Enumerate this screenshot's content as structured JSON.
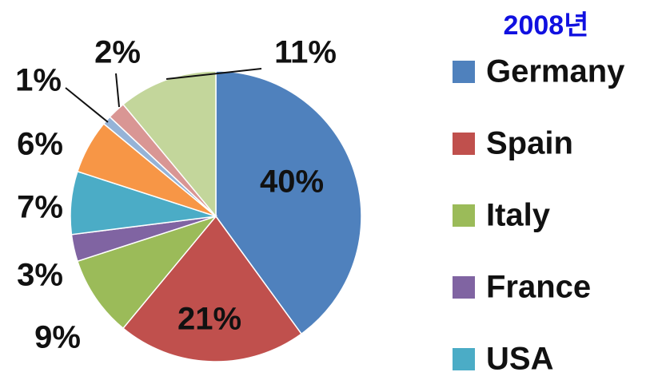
{
  "chart_data": {
    "type": "pie",
    "title": "2008년",
    "categories": [
      "Germany",
      "Spain",
      "Italy",
      "France",
      "USA",
      null,
      null,
      null,
      null
    ],
    "values": [
      40,
      21,
      9,
      3,
      7,
      6,
      1,
      2,
      11
    ],
    "value_labels": [
      "40%",
      "21%",
      "9%",
      "3%",
      "7%",
      "6%",
      "1%",
      "2%",
      "11%"
    ],
    "colors": [
      "#4f81bd",
      "#c0504d",
      "#9bbb59",
      "#8064a2",
      "#4bacc6",
      "#f79646",
      "#95b3d7",
      "#d99694",
      "#c3d69b"
    ]
  }
}
